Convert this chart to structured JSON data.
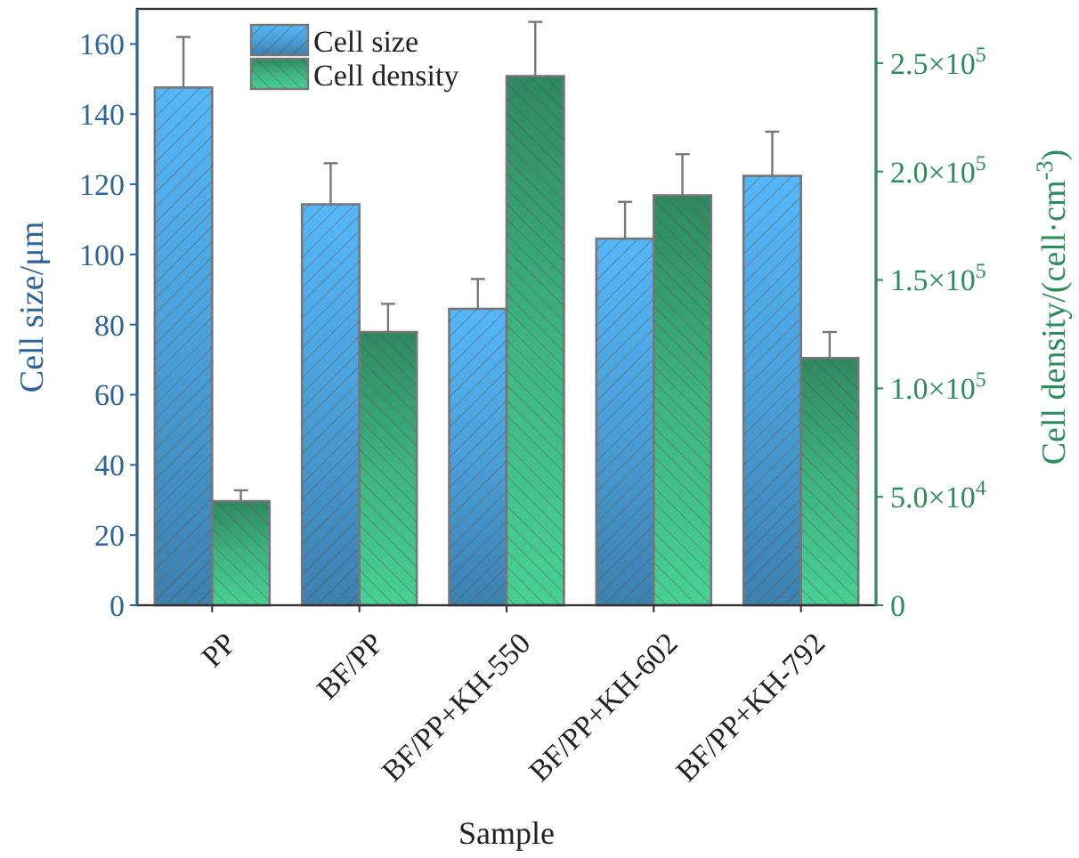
{
  "chart_data": {
    "type": "bar",
    "xlabel": "Sample",
    "ylabel": "Cell size/μm",
    "y2label": "Cell density/(cell·cm$^{-3}$)",
    "categories": [
      "PP",
      "BF/PP",
      "BF/PP+KH-550",
      "BF/PP+KH-602",
      "BF/PP+KH-792"
    ],
    "series": [
      {
        "name": "Cell size",
        "color": "#4a9fd8",
        "values": [
          147.6,
          114.3,
          84.5,
          104.5,
          122.4
        ],
        "errors": [
          [
            147.6,
            162
          ],
          [
            114.3,
            126
          ],
          [
            84.5,
            93
          ],
          [
            104.5,
            115
          ],
          [
            122.4,
            135
          ]
        ]
      },
      {
        "name": "Cell density",
        "color": "#3aa878",
        "axis": "y2",
        "values": [
          48000,
          126000,
          244000,
          189000,
          114000
        ],
        "errors": [
          [
            48000,
            53000
          ],
          [
            126000,
            139000
          ],
          [
            244000,
            269000
          ],
          [
            189000,
            208000
          ],
          [
            114000,
            126000
          ]
        ]
      }
    ],
    "ylim": [
      0,
      170
    ],
    "yticks": [
      0,
      20,
      40,
      60,
      80,
      100,
      120,
      140,
      160
    ],
    "y2lim": [
      0,
      275000
    ],
    "y2ticks": [
      0,
      {
        "value": 50000,
        "label": "5.0×10$^{4}$"
      },
      {
        "value": 100000,
        "label": "1.0×10$^{5}$"
      },
      {
        "value": 150000,
        "label": "1.5×10$^{5}$"
      },
      {
        "value": 200000,
        "label": "2.0×10$^{5}$"
      },
      {
        "value": 250000,
        "label": "2.5×10$^{5}$"
      }
    ],
    "legend": "top left",
    "grid": false
  }
}
